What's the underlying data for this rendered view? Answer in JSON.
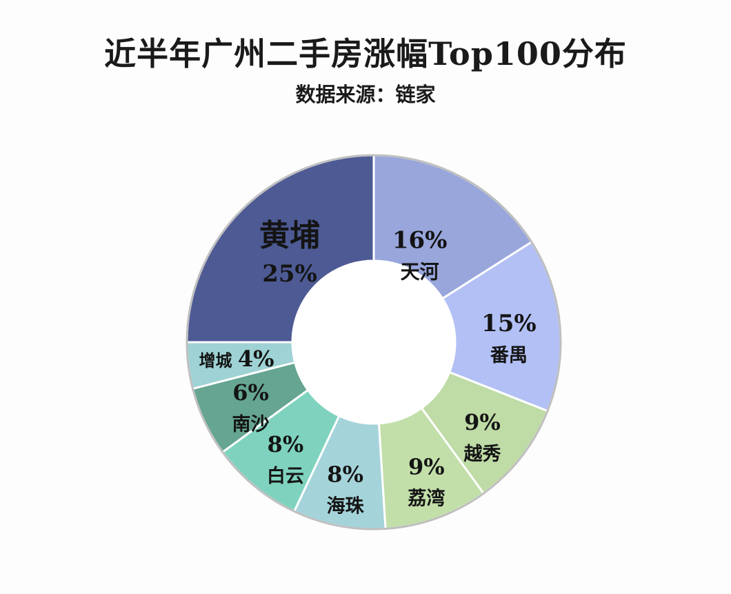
{
  "chart_data": {
    "type": "pie",
    "title": "近半年广州二手房涨幅Top100分布",
    "subtitle": "数据来源：链家",
    "donut": true,
    "slices": [
      {
        "name": "天河",
        "value": 16,
        "label": "16%",
        "color": "#98a6dc"
      },
      {
        "name": "番禺",
        "value": 15,
        "label": "15%",
        "color": "#b2c0f5"
      },
      {
        "name": "越秀",
        "value": 9,
        "label": "9%",
        "color": "#bfdba6"
      },
      {
        "name": "荔湾",
        "value": 9,
        "label": "9%",
        "color": "#c2dfaa"
      },
      {
        "name": "海珠",
        "value": 8,
        "label": "8%",
        "color": "#a5d3da"
      },
      {
        "name": "白云",
        "value": 8,
        "label": "8%",
        "color": "#7fd3be"
      },
      {
        "name": "南沙",
        "value": 6,
        "label": "6%",
        "color": "#65a592"
      },
      {
        "name": "增城",
        "value": 4,
        "label": "4%",
        "color": "#9ed2d4"
      },
      {
        "name": "黄埔",
        "value": 25,
        "label": "25%",
        "color": "#4d5a94"
      }
    ]
  }
}
